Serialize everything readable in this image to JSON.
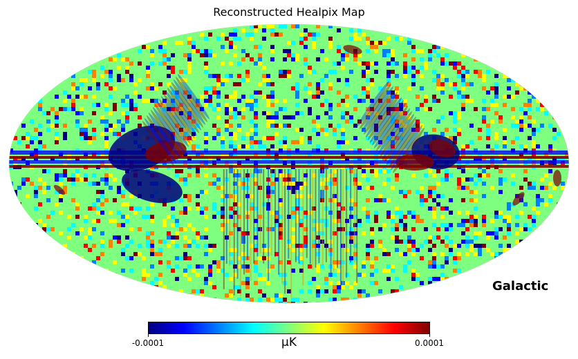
{
  "title": "Reconstructed Healpix Map",
  "coord_system": "Galactic",
  "projection": "mollweide",
  "colormap": "jet",
  "colorbar": {
    "min_label": "-0.0001",
    "max_label": "0.0001",
    "unit": "μK",
    "min": -0.0001,
    "max": 0.0001,
    "colors": [
      "#00007f",
      "#0000ff",
      "#007fff",
      "#00ffff",
      "#7fff7f",
      "#ffff00",
      "#ff7f00",
      "#ff0000",
      "#7f0000"
    ]
  },
  "colors": {
    "background_field": "#7fff7f"
  }
}
